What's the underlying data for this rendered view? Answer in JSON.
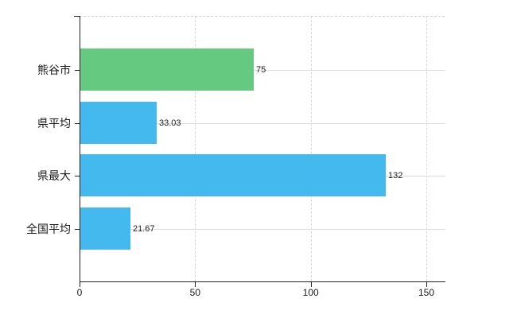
{
  "chart_data": {
    "type": "bar",
    "orientation": "horizontal",
    "title": "",
    "xlabel": "",
    "ylabel": "",
    "categories": [
      "熊谷市",
      "県平均",
      "県最大",
      "全国平均"
    ],
    "values": [
      75,
      33.03,
      132,
      21.67
    ],
    "value_labels": [
      "75",
      "33.03",
      "132",
      "21.67"
    ],
    "bar_colors": [
      "#65ca80",
      "#44b9ee",
      "#44b9ee",
      "#44b9ee"
    ],
    "x_ticks": [
      0,
      50,
      100,
      150
    ],
    "x_tick_labels": [
      "0",
      "50",
      "100",
      "150"
    ],
    "xlim": [
      0,
      158.2
    ],
    "grid": true,
    "legend": false,
    "colors": {
      "bar_blue": "#44b9ee",
      "bar_green": "#65ca80",
      "axis": "#222222",
      "gridline_horizontal": "#dcdedc",
      "gridline_vertical": "#d9d6d9",
      "background": "#ffffff",
      "label_text": "#1a1a1a"
    }
  }
}
